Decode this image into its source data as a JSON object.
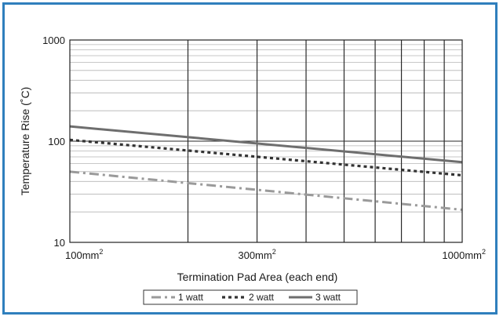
{
  "chart_data": {
    "type": "line",
    "title": "",
    "xlabel": "Termination Pad Area (each end)",
    "ylabel": "Temperature Rise (˚C)",
    "x_scale": "log",
    "y_scale": "log",
    "xlim": [
      100,
      1000
    ],
    "ylim": [
      10,
      1000
    ],
    "grid": true,
    "legend_position": "bottom-center",
    "x_ticks": [
      {
        "value": 100,
        "label": "100mm",
        "sup": "2"
      },
      {
        "value": 300,
        "label": "300mm",
        "sup": "2"
      },
      {
        "value": 1000,
        "label": "1000mm",
        "sup": "2"
      }
    ],
    "y_ticks": [
      {
        "value": 10,
        "label": "10"
      },
      {
        "value": 100,
        "label": "100"
      },
      {
        "value": 1000,
        "label": "1000"
      }
    ],
    "x_major_lines": [
      200,
      300,
      400,
      500,
      600,
      700,
      800,
      900
    ],
    "series": [
      {
        "name": "1 watt",
        "style": "dashdot",
        "color": "#9a9a9a",
        "x": [
          100,
          1000
        ],
        "y": [
          50,
          21
        ]
      },
      {
        "name": "2 watt",
        "style": "dotted",
        "color": "#333333",
        "x": [
          100,
          1000
        ],
        "y": [
          103,
          46
        ]
      },
      {
        "name": "3 watt",
        "style": "solid",
        "color": "#6e6e6e",
        "x": [
          100,
          1000
        ],
        "y": [
          140,
          62
        ]
      }
    ]
  },
  "colors": {
    "frame_border": "#2f7fbd",
    "grid_major": "#2a2a2a",
    "grid_minor": "#b5b5b5"
  }
}
